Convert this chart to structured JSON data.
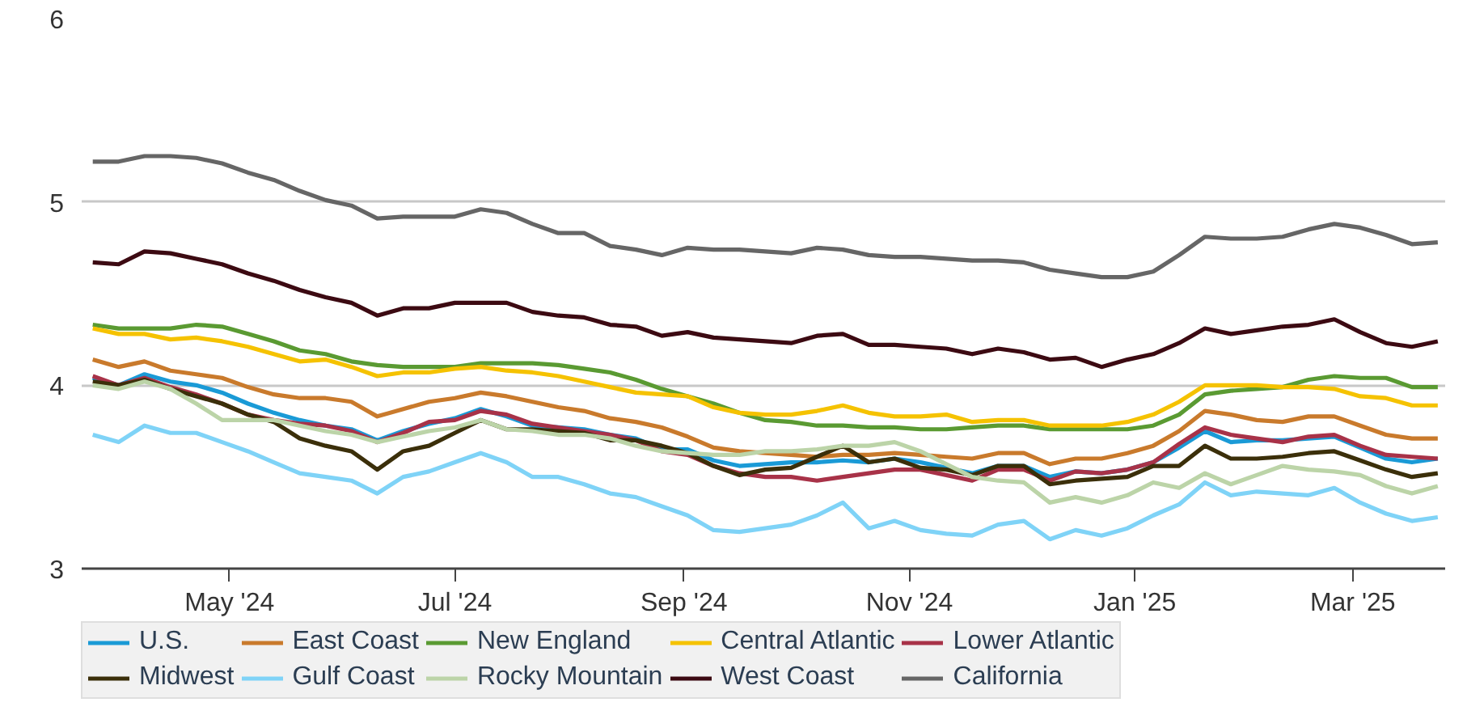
{
  "chart_data": {
    "type": "line",
    "x": [
      "2024-03-25",
      "2024-04-01",
      "2024-04-08",
      "2024-04-15",
      "2024-04-22",
      "2024-04-29",
      "2024-05-06",
      "2024-05-13",
      "2024-05-20",
      "2024-05-27",
      "2024-06-03",
      "2024-06-10",
      "2024-06-17",
      "2024-06-24",
      "2024-07-01",
      "2024-07-08",
      "2024-07-15",
      "2024-07-22",
      "2024-07-29",
      "2024-08-05",
      "2024-08-12",
      "2024-08-19",
      "2024-08-26",
      "2024-09-02",
      "2024-09-09",
      "2024-09-16",
      "2024-09-23",
      "2024-09-30",
      "2024-10-07",
      "2024-10-14",
      "2024-10-21",
      "2024-10-28",
      "2024-11-04",
      "2024-11-11",
      "2024-11-18",
      "2024-11-25",
      "2024-12-02",
      "2024-12-09",
      "2024-12-16",
      "2024-12-23",
      "2024-12-30",
      "2025-01-06",
      "2025-01-13",
      "2025-01-20",
      "2025-01-27",
      "2025-02-03",
      "2025-02-10",
      "2025-02-17",
      "2025-02-24",
      "2025-03-03",
      "2025-03-10",
      "2025-03-17",
      "2025-03-24"
    ],
    "series": [
      {
        "name": "U.S.",
        "color": "#1a9ad6",
        "values": [
          4.04,
          4.0,
          4.06,
          4.02,
          4.0,
          3.96,
          3.9,
          3.85,
          3.81,
          3.78,
          3.76,
          3.7,
          3.75,
          3.79,
          3.82,
          3.87,
          3.83,
          3.78,
          3.77,
          3.76,
          3.73,
          3.71,
          3.65,
          3.65,
          3.59,
          3.56,
          3.57,
          3.58,
          3.58,
          3.59,
          3.58,
          3.6,
          3.58,
          3.55,
          3.52,
          3.56,
          3.56,
          3.5,
          3.53,
          3.52,
          3.54,
          3.58,
          3.66,
          3.75,
          3.69,
          3.7,
          3.7,
          3.71,
          3.72,
          3.66,
          3.6,
          3.58,
          3.6
        ]
      },
      {
        "name": "East Coast",
        "color": "#c97a2c",
        "values": [
          4.14,
          4.1,
          4.13,
          4.08,
          4.06,
          4.04,
          3.99,
          3.95,
          3.93,
          3.93,
          3.91,
          3.83,
          3.87,
          3.91,
          3.93,
          3.96,
          3.94,
          3.91,
          3.88,
          3.86,
          3.82,
          3.8,
          3.77,
          3.72,
          3.66,
          3.64,
          3.63,
          3.62,
          3.61,
          3.62,
          3.62,
          3.63,
          3.62,
          3.61,
          3.6,
          3.63,
          3.63,
          3.57,
          3.6,
          3.6,
          3.63,
          3.67,
          3.75,
          3.86,
          3.84,
          3.81,
          3.8,
          3.83,
          3.83,
          3.78,
          3.73,
          3.71,
          3.71
        ]
      },
      {
        "name": "New England",
        "color": "#5a9a32",
        "values": [
          4.33,
          4.31,
          4.31,
          4.31,
          4.33,
          4.32,
          4.28,
          4.24,
          4.19,
          4.17,
          4.13,
          4.11,
          4.1,
          4.1,
          4.1,
          4.12,
          4.12,
          4.12,
          4.11,
          4.09,
          4.07,
          4.03,
          3.98,
          3.94,
          3.9,
          3.85,
          3.81,
          3.8,
          3.78,
          3.78,
          3.77,
          3.77,
          3.76,
          3.76,
          3.77,
          3.78,
          3.78,
          3.76,
          3.76,
          3.76,
          3.76,
          3.78,
          3.84,
          3.95,
          3.97,
          3.98,
          3.99,
          4.03,
          4.05,
          4.04,
          4.04,
          3.99,
          3.99
        ]
      },
      {
        "name": "Central Atlantic",
        "color": "#f5c200",
        "values": [
          4.31,
          4.28,
          4.28,
          4.25,
          4.26,
          4.24,
          4.21,
          4.17,
          4.13,
          4.14,
          4.1,
          4.05,
          4.07,
          4.07,
          4.09,
          4.1,
          4.08,
          4.07,
          4.05,
          4.02,
          3.99,
          3.96,
          3.95,
          3.94,
          3.88,
          3.85,
          3.84,
          3.84,
          3.86,
          3.89,
          3.85,
          3.83,
          3.83,
          3.84,
          3.8,
          3.81,
          3.81,
          3.78,
          3.78,
          3.78,
          3.8,
          3.84,
          3.91,
          4.0,
          4.0,
          4.0,
          3.99,
          3.99,
          3.98,
          3.94,
          3.93,
          3.89,
          3.89
        ]
      },
      {
        "name": "Lower Atlantic",
        "color": "#a83248",
        "values": [
          4.05,
          4.0,
          4.04,
          3.99,
          3.95,
          3.9,
          3.84,
          3.81,
          3.79,
          3.78,
          3.75,
          3.69,
          3.74,
          3.8,
          3.81,
          3.86,
          3.84,
          3.79,
          3.77,
          3.75,
          3.73,
          3.7,
          3.64,
          3.62,
          3.56,
          3.52,
          3.5,
          3.5,
          3.48,
          3.5,
          3.52,
          3.54,
          3.54,
          3.51,
          3.48,
          3.54,
          3.54,
          3.48,
          3.53,
          3.52,
          3.54,
          3.58,
          3.68,
          3.77,
          3.73,
          3.71,
          3.69,
          3.72,
          3.73,
          3.67,
          3.62,
          3.61,
          3.6
        ]
      },
      {
        "name": "Midwest",
        "color": "#3b2f0a",
        "values": [
          4.02,
          4.0,
          4.03,
          3.98,
          3.94,
          3.9,
          3.84,
          3.8,
          3.71,
          3.67,
          3.64,
          3.54,
          3.64,
          3.67,
          3.74,
          3.81,
          3.76,
          3.76,
          3.75,
          3.74,
          3.7,
          3.7,
          3.67,
          3.63,
          3.56,
          3.51,
          3.54,
          3.55,
          3.61,
          3.67,
          3.58,
          3.6,
          3.55,
          3.54,
          3.51,
          3.56,
          3.56,
          3.46,
          3.48,
          3.49,
          3.5,
          3.56,
          3.56,
          3.67,
          3.6,
          3.6,
          3.61,
          3.63,
          3.64,
          3.59,
          3.54,
          3.5,
          3.52
        ]
      },
      {
        "name": "Gulf Coast",
        "color": "#7fd3f7",
        "values": [
          3.73,
          3.69,
          3.78,
          3.74,
          3.74,
          3.69,
          3.64,
          3.58,
          3.52,
          3.5,
          3.48,
          3.41,
          3.5,
          3.53,
          3.58,
          3.63,
          3.58,
          3.5,
          3.5,
          3.46,
          3.41,
          3.39,
          3.34,
          3.29,
          3.21,
          3.2,
          3.22,
          3.24,
          3.29,
          3.36,
          3.22,
          3.26,
          3.21,
          3.19,
          3.18,
          3.24,
          3.26,
          3.16,
          3.21,
          3.18,
          3.22,
          3.29,
          3.35,
          3.47,
          3.4,
          3.42,
          3.41,
          3.4,
          3.44,
          3.36,
          3.3,
          3.26,
          3.28
        ]
      },
      {
        "name": "Rocky Mountain",
        "color": "#bcd4a8",
        "values": [
          4.0,
          3.98,
          4.02,
          3.98,
          3.9,
          3.81,
          3.81,
          3.81,
          3.78,
          3.75,
          3.73,
          3.69,
          3.72,
          3.75,
          3.77,
          3.81,
          3.76,
          3.75,
          3.73,
          3.73,
          3.71,
          3.67,
          3.64,
          3.63,
          3.62,
          3.62,
          3.64,
          3.64,
          3.65,
          3.67,
          3.67,
          3.69,
          3.64,
          3.57,
          3.5,
          3.48,
          3.47,
          3.36,
          3.39,
          3.36,
          3.4,
          3.47,
          3.44,
          3.52,
          3.46,
          3.51,
          3.56,
          3.54,
          3.53,
          3.51,
          3.45,
          3.41,
          3.45
        ]
      },
      {
        "name": "West Coast",
        "color": "#3c0a12",
        "values": [
          4.67,
          4.66,
          4.73,
          4.72,
          4.69,
          4.66,
          4.61,
          4.57,
          4.52,
          4.48,
          4.45,
          4.38,
          4.42,
          4.42,
          4.45,
          4.45,
          4.45,
          4.4,
          4.38,
          4.37,
          4.33,
          4.32,
          4.27,
          4.29,
          4.26,
          4.25,
          4.24,
          4.23,
          4.27,
          4.28,
          4.22,
          4.22,
          4.21,
          4.2,
          4.17,
          4.2,
          4.18,
          4.14,
          4.15,
          4.1,
          4.14,
          4.17,
          4.23,
          4.31,
          4.28,
          4.3,
          4.32,
          4.33,
          4.36,
          4.29,
          4.23,
          4.21,
          4.24
        ]
      },
      {
        "name": "California",
        "color": "#666666",
        "values": [
          5.22,
          5.22,
          5.25,
          5.25,
          5.24,
          5.21,
          5.16,
          5.12,
          5.06,
          5.01,
          4.98,
          4.91,
          4.92,
          4.92,
          4.92,
          4.96,
          4.94,
          4.88,
          4.83,
          4.83,
          4.76,
          4.74,
          4.71,
          4.75,
          4.74,
          4.74,
          4.73,
          4.72,
          4.75,
          4.74,
          4.71,
          4.7,
          4.7,
          4.69,
          4.68,
          4.68,
          4.67,
          4.63,
          4.61,
          4.59,
          4.59,
          4.62,
          4.71,
          4.81,
          4.8,
          4.8,
          4.81,
          4.85,
          4.88,
          4.86,
          4.82,
          4.77,
          4.78
        ]
      }
    ],
    "xlim": [
      "2024-03-22",
      "2025-03-26"
    ],
    "xticks": [
      {
        "value": "2024-05-01",
        "label": "May '24"
      },
      {
        "value": "2024-07-01",
        "label": "Jul '24"
      },
      {
        "value": "2024-09-01",
        "label": "Sep '24"
      },
      {
        "value": "2024-11-01",
        "label": "Nov '24"
      },
      {
        "value": "2025-01-01",
        "label": "Jan '25"
      },
      {
        "value": "2025-03-01",
        "label": "Mar '25"
      }
    ],
    "ylim": [
      3,
      6
    ],
    "yticks": [
      3,
      4,
      5,
      6
    ],
    "grid": "y",
    "legend": "bottom"
  }
}
